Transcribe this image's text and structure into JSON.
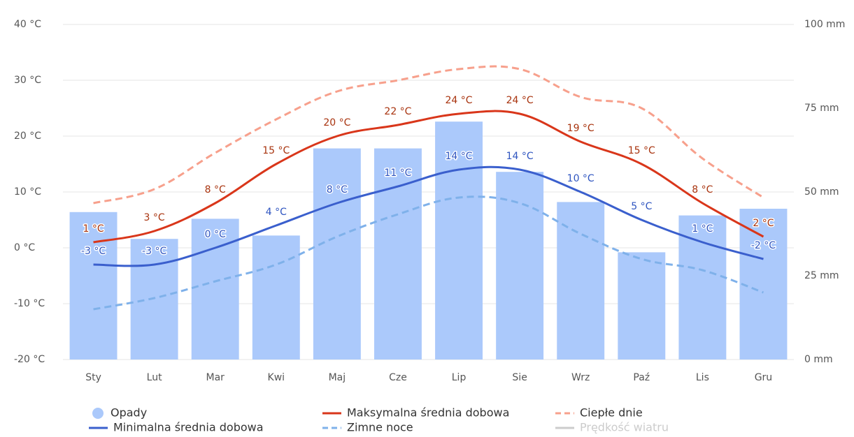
{
  "chart_data": {
    "type": "combo",
    "categories": [
      "Sty",
      "Lut",
      "Mar",
      "Kwi",
      "Maj",
      "Cze",
      "Lip",
      "Sie",
      "Wrz",
      "Paź",
      "Lis",
      "Gru"
    ],
    "ylim": [
      -20,
      40
    ],
    "yticks": [
      {
        "value": -20,
        "label": "-20 °C"
      },
      {
        "value": -10,
        "label": "-10 °C"
      },
      {
        "value": 0,
        "label": "0 °C"
      },
      {
        "value": 10,
        "label": "10 °C"
      },
      {
        "value": 20,
        "label": "20 °C"
      },
      {
        "value": 30,
        "label": "30 °C"
      },
      {
        "value": 40,
        "label": "40 °C"
      }
    ],
    "y2lim": [
      0,
      100
    ],
    "y2ticks": [
      {
        "value": 0,
        "label": "0 mm"
      },
      {
        "value": 25,
        "label": "25 mm"
      },
      {
        "value": 50,
        "label": "50 mm"
      },
      {
        "value": 75,
        "label": "75 mm"
      },
      {
        "value": 100,
        "label": "100 mm"
      }
    ],
    "grid": true,
    "series": [
      {
        "name": "Opady",
        "type": "bar",
        "axis": "y2",
        "color": "#abc9fb",
        "values": [
          44,
          36,
          42,
          37,
          63,
          63,
          71,
          56,
          47,
          32,
          43,
          45
        ]
      },
      {
        "name": "Maksymalna średnia dobowa",
        "type": "line",
        "color": "#d9361a",
        "label_color": "#a8330e",
        "values": [
          1,
          3,
          8,
          15,
          20,
          22,
          24,
          24,
          19,
          15,
          8,
          2
        ],
        "value_labels": [
          "1 °C",
          "3 °C",
          "8 °C",
          "15 °C",
          "20 °C",
          "22 °C",
          "24 °C",
          "24 °C",
          "19 °C",
          "15 °C",
          "8 °C",
          "2 °C"
        ]
      },
      {
        "name": "Ciepłe dnie",
        "type": "dashed",
        "color": "#f7a08c",
        "values": [
          8,
          10.5,
          17,
          23,
          28,
          30,
          32,
          32,
          27,
          25,
          16,
          9
        ]
      },
      {
        "name": "Minimalna średnia dobowa",
        "type": "line",
        "color": "#3a5fcd",
        "label_color": "#2f55c0",
        "values": [
          -3,
          -3,
          0,
          4,
          8,
          11,
          14,
          14,
          10,
          5,
          1,
          -2
        ],
        "value_labels": [
          "-3 °C",
          "-3 °C",
          "0 °C",
          "4 °C",
          "8 °C",
          "11 °C",
          "14 °C",
          "14 °C",
          "10 °C",
          "5 °C",
          "1 °C",
          "-2 °C"
        ]
      },
      {
        "name": "Zimne noce",
        "type": "dashed",
        "color": "#7fb1ea",
        "values": [
          -11,
          -9,
          -6,
          -3,
          2,
          6,
          9,
          8,
          2.5,
          -2,
          -4,
          -8
        ]
      }
    ],
    "inactive_series": [
      {
        "name": "Prędkość wiatru",
        "color": "#cccccc"
      }
    ]
  }
}
